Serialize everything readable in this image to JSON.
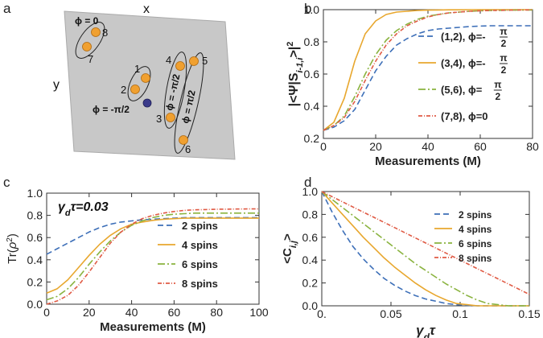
{
  "panels": {
    "a": {
      "label": "a",
      "x_label": "x",
      "y_label": "y",
      "spins": [
        {
          "id": "8",
          "label": "8"
        },
        {
          "id": "7",
          "label": "7"
        },
        {
          "id": "1",
          "label": "1"
        },
        {
          "id": "2",
          "label": "2"
        },
        {
          "id": "4",
          "label": "4"
        },
        {
          "id": "3",
          "label": "3"
        },
        {
          "id": "5",
          "label": "5"
        },
        {
          "id": "6",
          "label": "6"
        }
      ],
      "phase_labels": {
        "pair78": "ϕ = 0",
        "pair12": "ϕ = -π/2",
        "pair34": "ϕ = -π/2",
        "pair56": "ϕ = π/2"
      },
      "colors": {
        "plane": "#c8c8c8",
        "spin": "#f0a030",
        "central": "#3a3a8a"
      }
    }
  },
  "chart_data": [
    {
      "panel": "b",
      "type": "line",
      "xlabel": "Measurements (M)",
      "ylabel": "|<Ψ|S_{i-1,i}>|²",
      "xlim": [
        0,
        80
      ],
      "ylim": [
        0.2,
        1.0
      ],
      "xticks": [
        "0",
        "20",
        "40",
        "60",
        "80"
      ],
      "yticks": [
        "0.2",
        "0.4",
        "0.6",
        "0.8",
        "1.0"
      ],
      "x": [
        0,
        4,
        8,
        12,
        16,
        20,
        24,
        28,
        32,
        36,
        40,
        44,
        48,
        52,
        56,
        60,
        64,
        68,
        72,
        76,
        80
      ],
      "series": [
        {
          "name": "(1,2), ϕ=-π/2",
          "color": "#3d6fb8",
          "dash": "7,4",
          "values": [
            0.25,
            0.27,
            0.31,
            0.38,
            0.5,
            0.62,
            0.71,
            0.78,
            0.82,
            0.85,
            0.87,
            0.88,
            0.885,
            0.89,
            0.895,
            0.898,
            0.9,
            0.9,
            0.9,
            0.9,
            0.9
          ]
        },
        {
          "name": "(3,4), ϕ=-π/2",
          "color": "#e8a72e",
          "dash": "",
          "values": [
            0.25,
            0.3,
            0.45,
            0.68,
            0.85,
            0.93,
            0.97,
            0.985,
            0.99,
            0.995,
            0.997,
            0.998,
            0.999,
            0.999,
            1.0,
            1.0,
            1.0,
            1.0,
            1.0,
            1.0,
            1.0
          ]
        },
        {
          "name": "(5,6), ϕ=π/2",
          "color": "#8ab33f",
          "dash": "9,3,2,3",
          "values": [
            0.25,
            0.28,
            0.34,
            0.46,
            0.6,
            0.72,
            0.81,
            0.87,
            0.91,
            0.94,
            0.96,
            0.97,
            0.98,
            0.985,
            0.99,
            0.993,
            0.995,
            0.996,
            0.997,
            0.998,
            0.998
          ]
        },
        {
          "name": "(7,8), ϕ=0",
          "color": "#e05b45",
          "dash": "5,2,1,2",
          "values": [
            0.25,
            0.28,
            0.33,
            0.43,
            0.56,
            0.68,
            0.78,
            0.85,
            0.9,
            0.93,
            0.955,
            0.97,
            0.98,
            0.985,
            0.99,
            0.993,
            0.995,
            0.996,
            0.997,
            0.998,
            0.999
          ]
        }
      ],
      "legend": {
        "entries": [
          {
            "pair": "(1,2),",
            "phi": "ϕ=",
            "sign": "-",
            "frac_num": "π",
            "frac_den": "2"
          },
          {
            "pair": "(3,4),",
            "phi": "ϕ=",
            "sign": "-",
            "frac_num": "π",
            "frac_den": "2"
          },
          {
            "pair": "(5,6),",
            "phi": "ϕ=",
            "sign": "",
            "frac_num": "π",
            "frac_den": "2"
          },
          {
            "pair": "(7,8),",
            "phi": "ϕ=",
            "sign": "",
            "frac_num": "",
            "frac_den": "",
            "tail": "0"
          }
        ]
      }
    },
    {
      "panel": "c",
      "type": "line",
      "xlabel": "Measurements (M)",
      "ylabel": "Tr(ρ²)",
      "annotation": "γdτ=0.03",
      "xlim": [
        0,
        100
      ],
      "ylim": [
        0.0,
        1.0
      ],
      "xticks": [
        "0",
        "20",
        "40",
        "60",
        "80",
        "100"
      ],
      "yticks": [
        "0.0",
        "0.2",
        "0.4",
        "0.6",
        "0.8",
        "1.0"
      ],
      "x": [
        0,
        5,
        10,
        15,
        20,
        25,
        30,
        35,
        40,
        45,
        50,
        55,
        60,
        65,
        70,
        75,
        80,
        85,
        90,
        95,
        100
      ],
      "series": [
        {
          "name": "2 spins",
          "color": "#3d6fb8",
          "dash": "7,4",
          "values": [
            0.45,
            0.5,
            0.55,
            0.6,
            0.65,
            0.69,
            0.72,
            0.74,
            0.75,
            0.76,
            0.765,
            0.77,
            0.775,
            0.78,
            0.78,
            0.78,
            0.78,
            0.78,
            0.78,
            0.78,
            0.78
          ]
        },
        {
          "name": "4 spins",
          "color": "#e8a72e",
          "dash": "",
          "values": [
            0.1,
            0.14,
            0.22,
            0.33,
            0.44,
            0.54,
            0.62,
            0.68,
            0.72,
            0.74,
            0.755,
            0.765,
            0.77,
            0.775,
            0.775,
            0.775,
            0.775,
            0.775,
            0.775,
            0.775,
            0.775
          ]
        },
        {
          "name": "6 spins",
          "color": "#8ab33f",
          "dash": "9,3,2,3",
          "values": [
            0.04,
            0.07,
            0.14,
            0.24,
            0.36,
            0.47,
            0.57,
            0.65,
            0.71,
            0.75,
            0.78,
            0.8,
            0.81,
            0.815,
            0.82,
            0.82,
            0.82,
            0.82,
            0.82,
            0.82,
            0.82
          ]
        },
        {
          "name": "8 spins",
          "color": "#e05b45",
          "dash": "5,2,1,2",
          "values": [
            0.0,
            0.03,
            0.08,
            0.17,
            0.29,
            0.42,
            0.55,
            0.65,
            0.72,
            0.77,
            0.8,
            0.82,
            0.835,
            0.845,
            0.85,
            0.852,
            0.855,
            0.856,
            0.857,
            0.858,
            0.858
          ]
        }
      ],
      "legend": {
        "entries": [
          {
            "label": "2 spins"
          },
          {
            "label": "4 spins"
          },
          {
            "label": "6 spins"
          },
          {
            "label": "8 spins"
          }
        ]
      }
    },
    {
      "panel": "d",
      "type": "line",
      "xlabel": "γdτ",
      "ylabel": "<Ci,j>",
      "xlim": [
        0,
        0.15
      ],
      "ylim": [
        0.0,
        1.0
      ],
      "xticks": [
        "0.",
        "0.05",
        "0.1",
        "0.15"
      ],
      "yticks": [
        "0.0",
        "0.2",
        "0.4",
        "0.6",
        "0.8",
        "1.0"
      ],
      "x": [
        0,
        0.0075,
        0.015,
        0.0225,
        0.03,
        0.0375,
        0.045,
        0.0525,
        0.06,
        0.0675,
        0.075,
        0.0825,
        0.09,
        0.0975,
        0.105,
        0.1125,
        0.12,
        0.1275,
        0.135,
        0.1425,
        0.15
      ],
      "series": [
        {
          "name": "2 spins",
          "color": "#3d6fb8",
          "dash": "7,4",
          "values": [
            1.0,
            0.82,
            0.66,
            0.52,
            0.41,
            0.32,
            0.24,
            0.18,
            0.13,
            0.09,
            0.06,
            0.04,
            0.02,
            0.01,
            0.005,
            0.0,
            0.0,
            0.0,
            0.0,
            0.0,
            0.0
          ]
        },
        {
          "name": "4 spins",
          "color": "#e8a72e",
          "dash": "",
          "values": [
            1.0,
            0.9,
            0.8,
            0.7,
            0.6,
            0.51,
            0.42,
            0.34,
            0.27,
            0.2,
            0.14,
            0.09,
            0.05,
            0.02,
            0.01,
            0.0,
            0.0,
            0.0,
            0.0,
            0.0,
            0.0
          ]
        },
        {
          "name": "6 spins",
          "color": "#8ab33f",
          "dash": "9,3,2,3",
          "values": [
            1.0,
            0.93,
            0.86,
            0.79,
            0.72,
            0.65,
            0.58,
            0.51,
            0.44,
            0.37,
            0.31,
            0.25,
            0.19,
            0.14,
            0.09,
            0.05,
            0.02,
            0.01,
            0.0,
            0.0,
            0.0
          ]
        },
        {
          "name": "8 spins",
          "color": "#e05b45",
          "dash": "5,2,1,2",
          "values": [
            1.0,
            0.955,
            0.91,
            0.865,
            0.82,
            0.775,
            0.73,
            0.685,
            0.64,
            0.595,
            0.55,
            0.505,
            0.46,
            0.415,
            0.37,
            0.325,
            0.28,
            0.235,
            0.19,
            0.145,
            0.1
          ]
        }
      ],
      "legend": {
        "entries": [
          {
            "label": "2 spins"
          },
          {
            "label": "4 spins"
          },
          {
            "label": "6 spins"
          },
          {
            "label": "8 spins"
          }
        ]
      }
    }
  ]
}
